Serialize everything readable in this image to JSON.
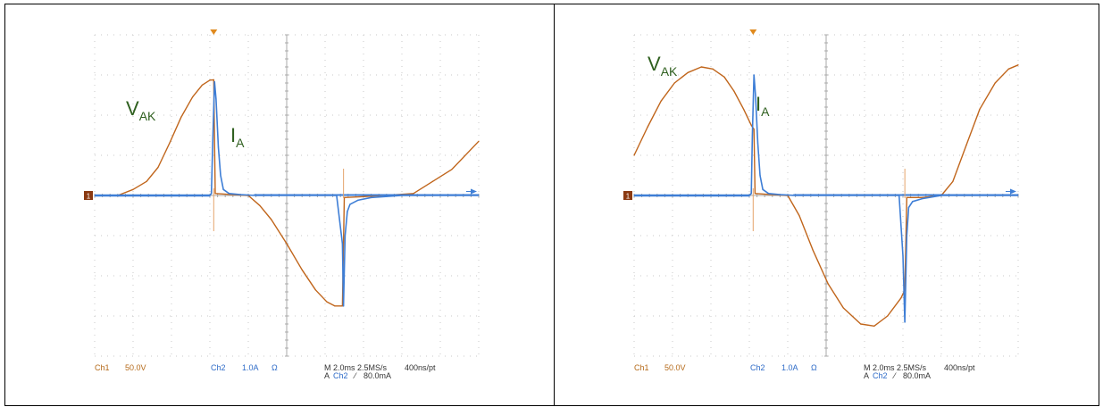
{
  "chart_data": [
    {
      "type": "line",
      "title": "",
      "xlabel": "",
      "ylabel": "",
      "grid": true,
      "time_div_ms": 2.0,
      "divisions": {
        "x": 10,
        "y": 8
      },
      "series": [
        {
          "name": "VAK",
          "label_main": "V",
          "label_sub": "AK",
          "channel": "Ch1",
          "color": "#c0651b",
          "units": "V",
          "scale_per_div": 50.0,
          "points": [
            [
              0,
              0
            ],
            [
              0.6,
              0
            ],
            [
              1.0,
              0.15
            ],
            [
              1.35,
              0.35
            ],
            [
              1.65,
              0.7
            ],
            [
              1.95,
              1.3
            ],
            [
              2.25,
              1.95
            ],
            [
              2.55,
              2.45
            ],
            [
              2.8,
              2.75
            ],
            [
              3.0,
              2.87
            ],
            [
              3.1,
              2.88
            ],
            [
              3.14,
              0.05
            ],
            [
              3.6,
              0.02
            ],
            [
              4.0,
              0
            ],
            [
              4.3,
              -0.25
            ],
            [
              4.6,
              -0.6
            ],
            [
              5.0,
              -1.2
            ],
            [
              5.4,
              -1.85
            ],
            [
              5.75,
              -2.35
            ],
            [
              6.05,
              -2.65
            ],
            [
              6.25,
              -2.75
            ],
            [
              6.45,
              -2.75
            ],
            [
              6.5,
              -0.05
            ],
            [
              7.0,
              -0.03
            ],
            [
              7.5,
              0
            ],
            [
              8.0,
              0.03
            ],
            [
              8.3,
              0.05
            ],
            [
              8.8,
              0.35
            ],
            [
              9.3,
              0.65
            ],
            [
              10.0,
              1.35
            ]
          ]
        },
        {
          "name": "IA",
          "label_main": "I",
          "label_sub": "A",
          "channel": "Ch2",
          "color": "#3e7ed6",
          "units": "A",
          "scale_per_div": 1.0,
          "points": [
            [
              0,
              0
            ],
            [
              3.0,
              0
            ],
            [
              3.04,
              0.05
            ],
            [
              3.08,
              1.5
            ],
            [
              3.12,
              2.83
            ],
            [
              3.16,
              2.4
            ],
            [
              3.22,
              1.2
            ],
            [
              3.28,
              0.5
            ],
            [
              3.35,
              0.15
            ],
            [
              3.5,
              0.05
            ],
            [
              3.8,
              0.02
            ],
            [
              4.2,
              0
            ],
            [
              6.0,
              0
            ],
            [
              6.3,
              0
            ],
            [
              6.45,
              -1.2
            ],
            [
              6.48,
              -2.75
            ],
            [
              6.52,
              -1.0
            ],
            [
              6.58,
              -0.4
            ],
            [
              6.65,
              -0.22
            ],
            [
              6.85,
              -0.12
            ],
            [
              7.2,
              -0.05
            ],
            [
              8.0,
              0
            ],
            [
              10.0,
              0
            ]
          ]
        }
      ],
      "readout": {
        "ch1": "Ch1",
        "ch1_scale": "50.0V",
        "ch2": "Ch2",
        "ch2_scale": "1.0A",
        "ch2_coupling": "Ω",
        "timebase": "M 2.0ms 2.5MS/s",
        "record": "400ns/pt",
        "trigger_label": "A",
        "trigger_ch": "Ch2",
        "trigger_slope": "⁄",
        "trigger_level": "80.0mA"
      },
      "ground_marker": "1",
      "trigger_x_div": 3.1,
      "trigger_level_div": 0.1
    },
    {
      "type": "line",
      "title": "",
      "xlabel": "",
      "ylabel": "",
      "grid": true,
      "time_div_ms": 2.0,
      "divisions": {
        "x": 10,
        "y": 8
      },
      "series": [
        {
          "name": "VAK",
          "label_main": "V",
          "label_sub": "AK",
          "channel": "Ch1",
          "color": "#c0651b",
          "units": "V",
          "scale_per_div": 50.0,
          "points": [
            [
              0,
              1.0
            ],
            [
              0.35,
              1.7
            ],
            [
              0.7,
              2.35
            ],
            [
              1.05,
              2.8
            ],
            [
              1.4,
              3.06
            ],
            [
              1.75,
              3.2
            ],
            [
              2.05,
              3.15
            ],
            [
              2.35,
              2.95
            ],
            [
              2.6,
              2.6
            ],
            [
              2.85,
              2.15
            ],
            [
              3.05,
              1.75
            ],
            [
              3.12,
              1.65
            ],
            [
              3.15,
              0.05
            ],
            [
              3.6,
              0.02
            ],
            [
              4.0,
              0
            ],
            [
              4.3,
              -0.5
            ],
            [
              4.65,
              -1.35
            ],
            [
              5.05,
              -2.2
            ],
            [
              5.45,
              -2.8
            ],
            [
              5.9,
              -3.2
            ],
            [
              6.25,
              -3.25
            ],
            [
              6.6,
              -3.0
            ],
            [
              6.95,
              -2.55
            ],
            [
              7.05,
              -2.35
            ],
            [
              7.1,
              -0.05
            ],
            [
              7.5,
              -0.05
            ],
            [
              8.0,
              0
            ],
            [
              8.3,
              0.35
            ],
            [
              8.65,
              1.25
            ],
            [
              9.0,
              2.15
            ],
            [
              9.4,
              2.8
            ],
            [
              9.75,
              3.15
            ],
            [
              10.0,
              3.25
            ]
          ]
        },
        {
          "name": "IA",
          "label_main": "I",
          "label_sub": "A",
          "channel": "Ch2",
          "color": "#3e7ed6",
          "units": "A",
          "scale_per_div": 1.0,
          "points": [
            [
              0,
              0
            ],
            [
              3.0,
              0
            ],
            [
              3.05,
              0.05
            ],
            [
              3.08,
              1.5
            ],
            [
              3.12,
              3.0
            ],
            [
              3.16,
              2.5
            ],
            [
              3.22,
              1.3
            ],
            [
              3.28,
              0.5
            ],
            [
              3.35,
              0.15
            ],
            [
              3.5,
              0.05
            ],
            [
              3.8,
              0.02
            ],
            [
              4.2,
              0
            ],
            [
              6.5,
              0
            ],
            [
              6.9,
              0
            ],
            [
              7.0,
              -1.5
            ],
            [
              7.05,
              -3.15
            ],
            [
              7.1,
              -1.0
            ],
            [
              7.15,
              -0.3
            ],
            [
              7.25,
              -0.15
            ],
            [
              7.5,
              -0.08
            ],
            [
              8.0,
              0
            ],
            [
              10.0,
              0
            ]
          ]
        }
      ],
      "readout": {
        "ch1": "Ch1",
        "ch1_scale": "50.0V",
        "ch2": "Ch2",
        "ch2_scale": "1.0A",
        "ch2_coupling": "Ω",
        "timebase": "M 2.0ms 2.5MS/s",
        "record": "400ns/pt",
        "trigger_label": "A",
        "trigger_ch": "Ch2",
        "trigger_slope": "⁄",
        "trigger_level": "80.0mA"
      },
      "ground_marker": "1",
      "trigger_x_div": 3.1,
      "trigger_level_div": 0.1
    }
  ],
  "colors": {
    "grid": "#c8c8c8",
    "axis": "#a8a8a8",
    "label_green": "#2e5f1e",
    "readout_orange": "#b56a1a",
    "readout_blue": "#2f6cc8",
    "readout_dark": "#333333",
    "ground_marker_bg": "#8a3a12"
  }
}
